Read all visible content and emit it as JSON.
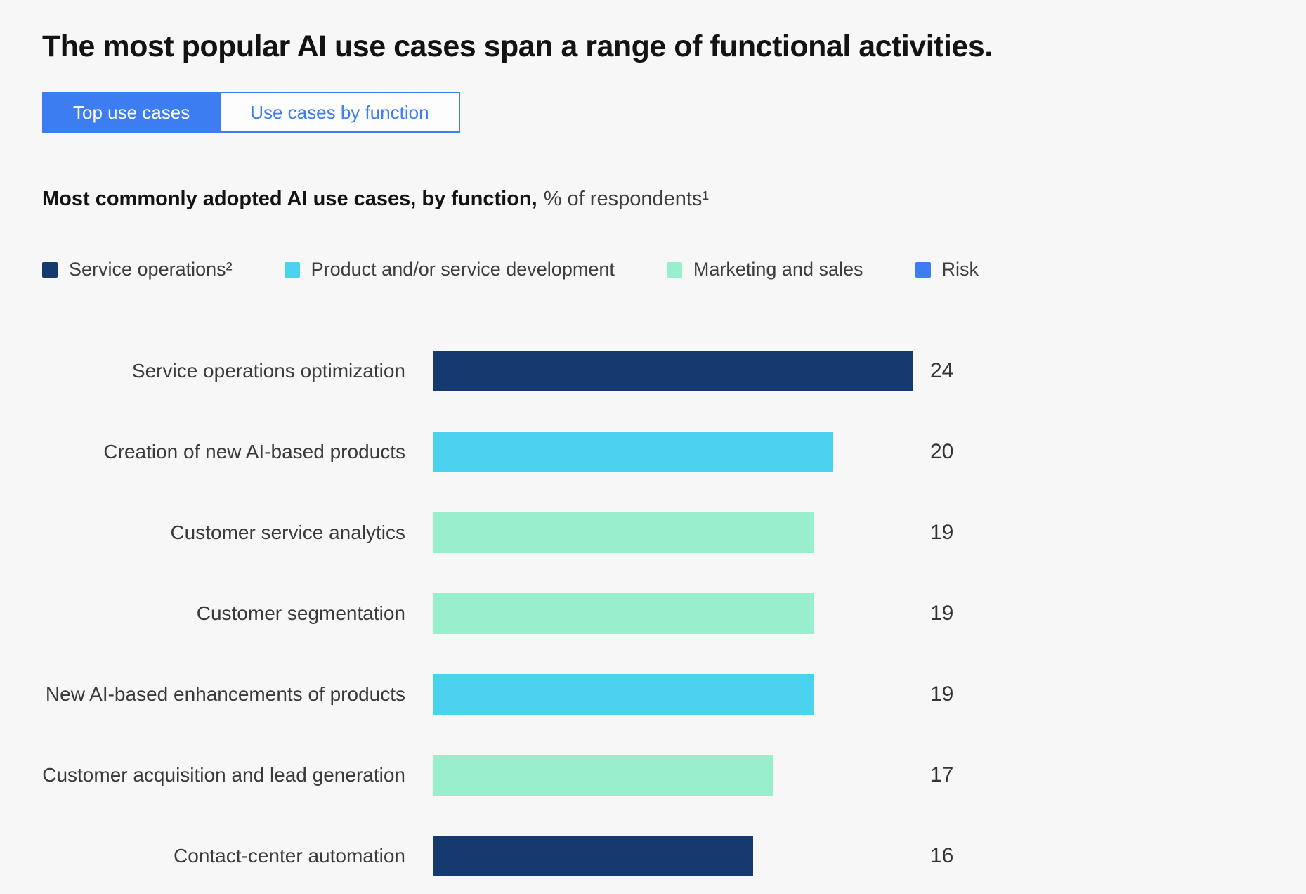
{
  "page": {
    "title": "The most popular AI use cases span a range of functional activities."
  },
  "tabs": {
    "items": [
      {
        "label": "Top use cases",
        "active": true
      },
      {
        "label": "Use cases by function",
        "active": false
      }
    ]
  },
  "subtitle": {
    "bold": "Most commonly adopted AI use cases, by function,",
    "regular": "% of respondents¹"
  },
  "legend": {
    "items": [
      {
        "label": "Service operations²",
        "series": "Service operations",
        "color": "#143A70"
      },
      {
        "label": "Product and/or service development",
        "series": "Product and/or service development",
        "color": "#4CD2EF"
      },
      {
        "label": "Marketing and sales",
        "series": "Marketing and sales",
        "color": "#98EFCC"
      },
      {
        "label": "Risk",
        "series": "Risk",
        "color": "#3C7DF1"
      }
    ]
  },
  "colors": {
    "accent_blue": "#3C7DF1",
    "background": "#F7F7F7",
    "navy": "#143A70",
    "cyan": "#4CD2EF",
    "mint": "#98EFCC"
  },
  "chart_data": {
    "type": "bar",
    "orientation": "horizontal",
    "title": "Most commonly adopted AI use cases, by function, % of respondents",
    "xlabel": "",
    "ylabel": "",
    "xlim": [
      0,
      24
    ],
    "grid": false,
    "data_labels": true,
    "legend_position": "top",
    "categories": [
      "Service operations optimization",
      "Creation of new AI-based products",
      "Customer service analytics",
      "Customer segmentation",
      "New AI-based enhancements of products",
      "Customer acquisition and lead generation",
      "Contact-center automation"
    ],
    "values": [
      24,
      20,
      19,
      19,
      19,
      17,
      16
    ],
    "bar_series": [
      "Service operations",
      "Product and/or service development",
      "Marketing and sales",
      "Marketing and sales",
      "Product and/or service development",
      "Marketing and sales",
      "Service operations"
    ]
  }
}
